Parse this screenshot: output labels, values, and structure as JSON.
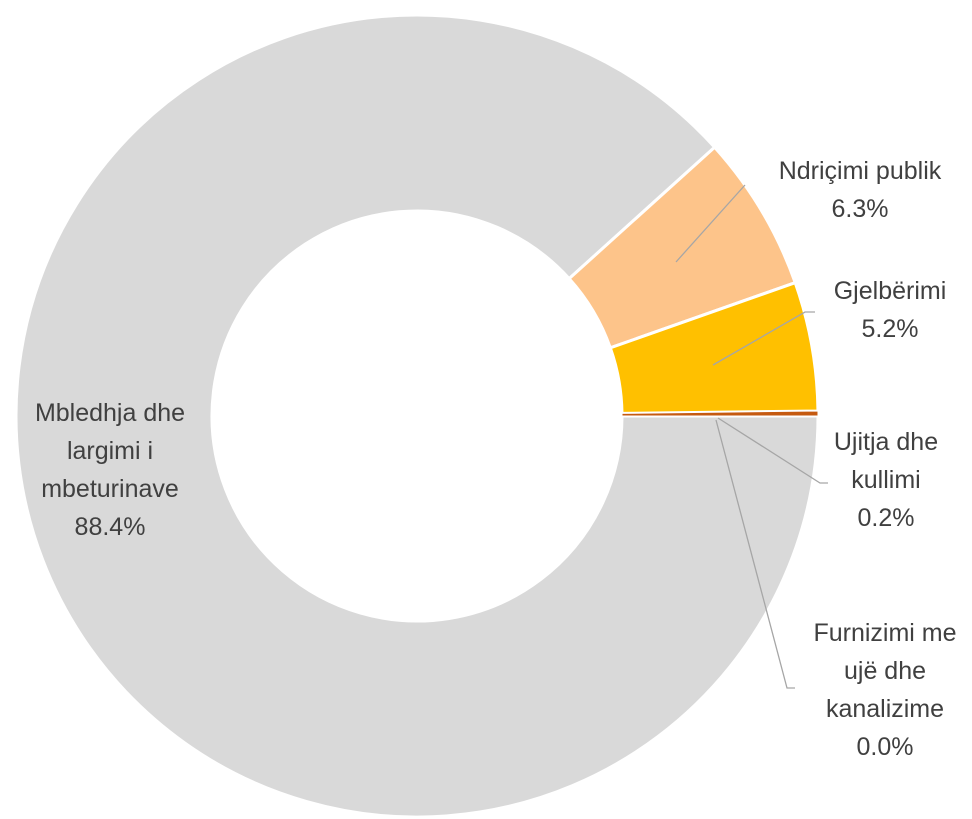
{
  "chart_data": {
    "type": "donut",
    "categories": [
      "Mbledhja dhe largimi i mbeturinave",
      "Ndriçimi publik",
      "Gjelbërimi",
      "Ujitja dhe kullimi",
      "Furnizimi me ujë dhe kanalizime"
    ],
    "values": [
      88.4,
      6.3,
      5.2,
      0.2,
      0.0
    ],
    "value_labels": [
      "88.4%",
      "6.3%",
      "5.2%",
      "0.2%",
      "0.0%"
    ],
    "colors": [
      "#d9d9d9",
      "#fdc48a",
      "#ffc000",
      "#c55a11",
      "#7f7f7f"
    ]
  }
}
